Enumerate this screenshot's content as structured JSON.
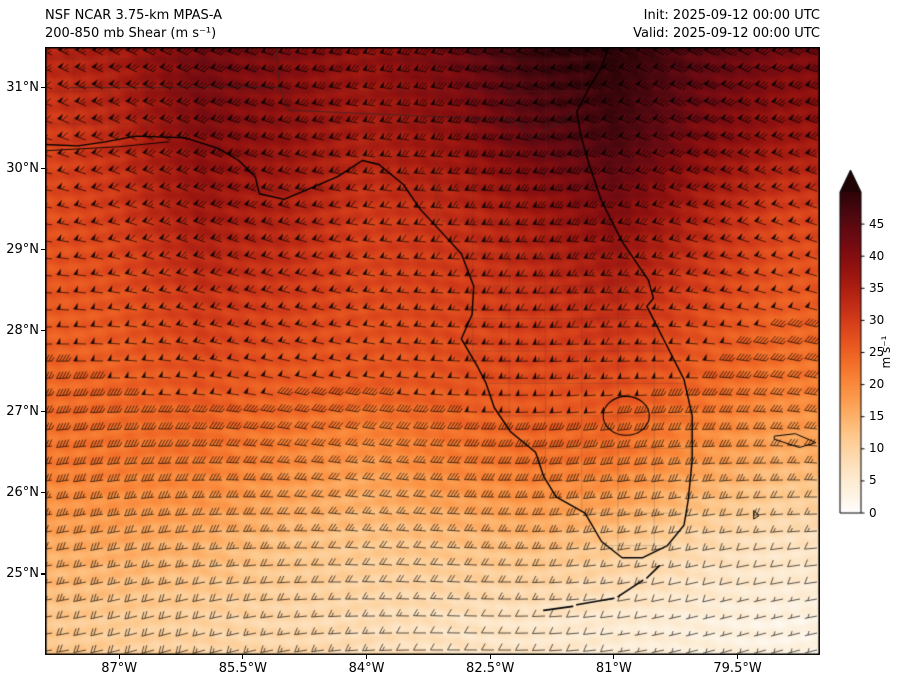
{
  "chart_data": {
    "type": "heatmap",
    "title": "NSF NCAR 3.75-km MPAS-A",
    "subtitle": "200-850 mb Shear (m s⁻¹)",
    "init_label": "Init: 2025-09-12 00:00 UTC",
    "valid_label": "Valid: 2025-09-12 00:00 UTC",
    "extent": {
      "lon_min": -87.9,
      "lon_max": -78.5,
      "lat_min": 24.0,
      "lat_max": 31.5
    },
    "x_ticks": {
      "values": [
        -87,
        -85.5,
        -84,
        -82.5,
        -81,
        -79.5
      ],
      "labels": [
        "87°W",
        "85.5°W",
        "84°W",
        "82.5°W",
        "81°W",
        "79.5°W"
      ]
    },
    "y_ticks": {
      "values": [
        31,
        30,
        29,
        28,
        27,
        26,
        25
      ],
      "labels": [
        "31°N",
        "30°N",
        "29°N",
        "28°N",
        "27°N",
        "26°N",
        "25°N"
      ]
    },
    "colorbar": {
      "label": "m s⁻¹",
      "ticks": [
        0,
        5,
        10,
        15,
        20,
        25,
        30,
        35,
        40,
        45
      ],
      "vmin": 0,
      "vmax": 50,
      "extend": "max"
    },
    "grid": {
      "units": "m s⁻¹",
      "lons": [
        -88,
        -87,
        -86,
        -85,
        -84,
        -83,
        -82,
        -81,
        -80,
        -79
      ],
      "lats": [
        24.4,
        25.4,
        26.4,
        27.4,
        28.4,
        29.4,
        30.4,
        31.4
      ],
      "shear_ms": [
        [
          12,
          11,
          10,
          9,
          8,
          7,
          6,
          5,
          4,
          3
        ],
        [
          16,
          16,
          15,
          13,
          12,
          13,
          14,
          12,
          9,
          7
        ],
        [
          22,
          22,
          22,
          20,
          18,
          21,
          23,
          22,
          18,
          15
        ],
        [
          24,
          25,
          27,
          26,
          26,
          27,
          28,
          28,
          25,
          22
        ],
        [
          26,
          27,
          31,
          30,
          28,
          29,
          31,
          33,
          29,
          26
        ],
        [
          27,
          30,
          36,
          34,
          30,
          32,
          36,
          40,
          34,
          29
        ],
        [
          29,
          33,
          40,
          38,
          35,
          38,
          44,
          47,
          41,
          37
        ],
        [
          33,
          36,
          42,
          40,
          38,
          42,
          48,
          50,
          45,
          41
        ]
      ]
    },
    "colormap_stops": [
      [
        0,
        "#ffffff"
      ],
      [
        3,
        "#fdf3e3"
      ],
      [
        6,
        "#fde8cb"
      ],
      [
        9,
        "#fdd9ad"
      ],
      [
        12,
        "#fdc98e"
      ],
      [
        15,
        "#fdb26b"
      ],
      [
        18,
        "#fc9a4c"
      ],
      [
        21,
        "#f98336"
      ],
      [
        24,
        "#f16a27"
      ],
      [
        27,
        "#e5531f"
      ],
      [
        30,
        "#d43d1a"
      ],
      [
        33,
        "#bd2a15"
      ],
      [
        36,
        "#a51b11"
      ],
      [
        39,
        "#8d100f"
      ],
      [
        42,
        "#740b11"
      ],
      [
        45,
        "#5c0911"
      ],
      [
        48,
        "#40060c"
      ],
      [
        52,
        "#200305"
      ]
    ],
    "wind_barbs": {
      "spacing_px": 17,
      "half_barb_ms": 2.5,
      "full_barb_ms": 5,
      "pennant_ms": 25,
      "from_dir_base_deg": 262,
      "from_dir_lat_coef": 3.5,
      "from_dir_wave_amp_deg": 8
    },
    "map": {
      "coastline": [
        [
          -87.95,
          30.3
        ],
        [
          -87.5,
          30.28
        ],
        [
          -87.17,
          30.33
        ],
        [
          -86.8,
          30.4
        ],
        [
          -86.2,
          30.38
        ],
        [
          -85.8,
          30.25
        ],
        [
          -85.55,
          30.1
        ],
        [
          -85.35,
          29.9
        ],
        [
          -85.3,
          29.69
        ],
        [
          -85.0,
          29.62
        ],
        [
          -84.7,
          29.75
        ],
        [
          -84.35,
          29.9
        ],
        [
          -84.05,
          30.1
        ],
        [
          -83.85,
          30.05
        ],
        [
          -83.55,
          29.8
        ],
        [
          -83.35,
          29.5
        ],
        [
          -83.05,
          29.17
        ],
        [
          -82.85,
          28.95
        ],
        [
          -82.7,
          28.55
        ],
        [
          -82.72,
          28.2
        ],
        [
          -82.85,
          27.9
        ],
        [
          -82.65,
          27.55
        ],
        [
          -82.55,
          27.35
        ],
        [
          -82.45,
          27.05
        ],
        [
          -82.25,
          26.75
        ],
        [
          -81.95,
          26.5
        ],
        [
          -81.85,
          26.2
        ],
        [
          -81.7,
          25.95
        ],
        [
          -81.35,
          25.75
        ],
        [
          -81.15,
          25.4
        ],
        [
          -80.9,
          25.2
        ],
        [
          -80.65,
          25.2
        ],
        [
          -80.35,
          25.35
        ],
        [
          -80.15,
          25.6
        ],
        [
          -80.1,
          25.9
        ],
        [
          -80.05,
          26.4
        ],
        [
          -80.05,
          26.95
        ],
        [
          -80.15,
          27.4
        ],
        [
          -80.35,
          27.8
        ],
        [
          -80.6,
          28.3
        ],
        [
          -80.52,
          28.4
        ],
        [
          -80.58,
          28.62
        ],
        [
          -80.9,
          29.1
        ],
        [
          -81.15,
          29.6
        ],
        [
          -81.3,
          30.05
        ],
        [
          -81.4,
          30.4
        ],
        [
          -81.45,
          30.7
        ],
        [
          -81.3,
          31.0
        ],
        [
          -81.15,
          31.25
        ],
        [
          -81.05,
          31.55
        ]
      ],
      "barrier_islands": [
        [
          [
            -87.9,
            30.22
          ],
          [
            -87.0,
            30.27
          ],
          [
            -86.4,
            30.33
          ]
        ]
      ],
      "keys": [
        [
          [
            -80.45,
            25.1
          ],
          [
            -80.6,
            24.95
          ]
        ],
        [
          [
            -80.65,
            24.92
          ],
          [
            -80.95,
            24.72
          ]
        ],
        [
          [
            -81.0,
            24.7
          ],
          [
            -81.45,
            24.62
          ]
        ],
        [
          [
            -81.5,
            24.6
          ],
          [
            -81.85,
            24.55
          ]
        ]
      ],
      "islands": [
        [
          [
            -79.05,
            26.7
          ],
          [
            -78.8,
            26.73
          ],
          [
            -78.55,
            26.62
          ],
          [
            -78.75,
            26.56
          ],
          [
            -79.05,
            26.66
          ]
        ],
        [
          [
            -79.3,
            25.78
          ],
          [
            -79.24,
            25.72
          ],
          [
            -79.3,
            25.68
          ]
        ]
      ],
      "lake": {
        "lon": -80.85,
        "lat": 26.95,
        "rx": 0.28,
        "ry": 0.24
      },
      "state_borders": [
        [
          [
            -87.6,
            31.0
          ],
          [
            -85.05,
            31.0
          ]
        ],
        [
          [
            -85.05,
            31.0
          ],
          [
            -85.1,
            31.5
          ]
        ],
        [
          [
            -85.05,
            31.0
          ],
          [
            -84.95,
            30.72
          ],
          [
            -82.2,
            30.6
          ],
          [
            -82.0,
            30.36
          ],
          [
            -81.45,
            30.72
          ]
        ]
      ],
      "county_lines": {
        "lon_step": 0.44,
        "lat_step": 0.4
      }
    }
  }
}
